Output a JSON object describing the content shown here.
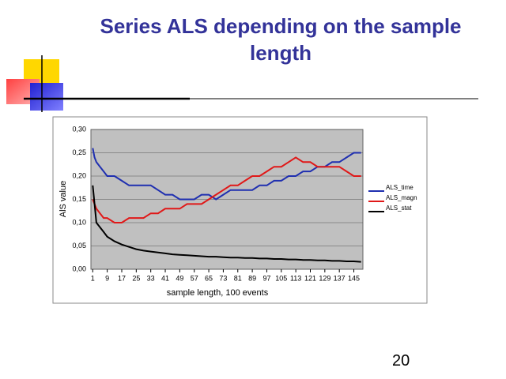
{
  "slide_title": "Series ALS depending on the sample length",
  "page_number": "20",
  "chart_data": {
    "type": "line",
    "x_label": "sample length, 100 events",
    "y_label": "AlS value",
    "x": [
      1,
      2,
      3,
      5,
      7,
      9,
      13,
      17,
      21,
      25,
      29,
      33,
      37,
      41,
      45,
      49,
      53,
      57,
      61,
      65,
      69,
      73,
      77,
      81,
      85,
      89,
      93,
      97,
      101,
      105,
      109,
      113,
      117,
      121,
      125,
      129,
      133,
      137,
      141,
      145,
      149
    ],
    "xlim": [
      0,
      150
    ],
    "xticks": [
      1,
      9,
      17,
      25,
      33,
      41,
      49,
      57,
      65,
      73,
      81,
      89,
      97,
      105,
      113,
      121,
      129,
      137,
      145
    ],
    "ylim": [
      0,
      0.3
    ],
    "yticks": [
      {
        "value": 0,
        "label": "0,00"
      },
      {
        "value": 0.05,
        "label": "0,05"
      },
      {
        "value": 0.1,
        "label": "0,10"
      },
      {
        "value": 0.15,
        "label": "0,15"
      },
      {
        "value": 0.2,
        "label": "0,20"
      },
      {
        "value": 0.25,
        "label": "0,25"
      },
      {
        "value": 0.3,
        "label": "0,30"
      }
    ],
    "grid": true,
    "legend": "right",
    "series": [
      {
        "name": "ALS_time",
        "color": "#1f2fb0",
        "values": [
          0.26,
          0.24,
          0.23,
          0.22,
          0.21,
          0.2,
          0.2,
          0.19,
          0.18,
          0.18,
          0.18,
          0.18,
          0.17,
          0.16,
          0.16,
          0.15,
          0.15,
          0.15,
          0.16,
          0.16,
          0.15,
          0.16,
          0.17,
          0.17,
          0.17,
          0.17,
          0.18,
          0.18,
          0.19,
          0.19,
          0.2,
          0.2,
          0.21,
          0.21,
          0.22,
          0.22,
          0.23,
          0.23,
          0.24,
          0.25,
          0.25
        ]
      },
      {
        "name": "ALS_magn",
        "color": "#e01818",
        "values": [
          0.15,
          0.14,
          0.13,
          0.12,
          0.11,
          0.11,
          0.1,
          0.1,
          0.11,
          0.11,
          0.11,
          0.12,
          0.12,
          0.13,
          0.13,
          0.13,
          0.14,
          0.14,
          0.14,
          0.15,
          0.16,
          0.17,
          0.18,
          0.18,
          0.19,
          0.2,
          0.2,
          0.21,
          0.22,
          0.22,
          0.23,
          0.24,
          0.23,
          0.23,
          0.22,
          0.22,
          0.22,
          0.22,
          0.21,
          0.2,
          0.2
        ]
      },
      {
        "name": "ALS_stat",
        "color": "#000000",
        "values": [
          0.18,
          0.14,
          0.1,
          0.09,
          0.08,
          0.07,
          0.06,
          0.053,
          0.048,
          0.043,
          0.04,
          0.038,
          0.036,
          0.034,
          0.032,
          0.031,
          0.03,
          0.029,
          0.028,
          0.027,
          0.027,
          0.026,
          0.025,
          0.025,
          0.024,
          0.024,
          0.023,
          0.023,
          0.022,
          0.022,
          0.021,
          0.021,
          0.02,
          0.02,
          0.019,
          0.019,
          0.018,
          0.018,
          0.017,
          0.017,
          0.016
        ]
      }
    ]
  }
}
